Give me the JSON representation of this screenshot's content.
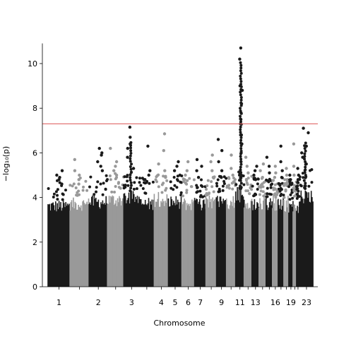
{
  "chart_data": {
    "type": "scatter",
    "subtype": "manhattan",
    "title": "",
    "xlabel": "Chromosome",
    "ylabel": "−log₁₀(p)",
    "ylim": [
      0,
      11
    ],
    "yticks": [
      0,
      2,
      4,
      6,
      8,
      10
    ],
    "significance_threshold": 7.3,
    "threshold_color": "#e06666",
    "colors": [
      "#1a1a1a",
      "#999999"
    ],
    "grid": false,
    "chromosomes": [
      {
        "chr": "1",
        "label": "1",
        "color": "#1a1a1a",
        "body_top": 3.9,
        "peaks": [
          5.2,
          5.0,
          4.8,
          4.6,
          4.9
        ]
      },
      {
        "chr": "2",
        "label": "",
        "color": "#999999",
        "body_top": 4.0,
        "peaks": [
          5.7,
          5.2,
          5.0,
          4.8,
          4.6
        ]
      },
      {
        "chr": "3",
        "label": "2",
        "color": "#1a1a1a",
        "body_top": 4.1,
        "peaks": [
          5.6,
          5.9,
          5.4,
          5.2,
          6.2,
          6.0
        ]
      },
      {
        "chr": "4",
        "label": "",
        "color": "#999999",
        "body_top": 4.2,
        "peaks": [
          6.2,
          5.6,
          5.4,
          5.2,
          5.0
        ]
      },
      {
        "chr": "5",
        "label": "3",
        "color": "#1a1a1a",
        "body_top": 4.3,
        "peaks": [
          7.15,
          6.7,
          6.4,
          6.2,
          5.8,
          5.3
        ]
      },
      {
        "chr": "6",
        "label": "",
        "color": "#1a1a1a",
        "body_top": 4.0,
        "peaks": [
          6.3,
          5.2,
          5.0,
          4.8
        ]
      },
      {
        "chr": "7",
        "label": "4",
        "color": "#999999",
        "body_top": 4.2,
        "peaks": [
          6.85,
          6.1,
          5.5,
          5.2,
          4.9
        ]
      },
      {
        "chr": "8",
        "label": "5",
        "color": "#1a1a1a",
        "body_top": 4.1,
        "peaks": [
          5.6,
          5.4,
          5.2,
          5.0
        ]
      },
      {
        "chr": "9",
        "label": "6",
        "color": "#999999",
        "body_top": 4.0,
        "peaks": [
          5.6,
          5.2,
          5.0,
          4.8
        ]
      },
      {
        "chr": "10",
        "label": "7",
        "color": "#1a1a1a",
        "body_top": 4.0,
        "peaks": [
          5.7,
          5.4,
          5.2,
          4.9
        ]
      },
      {
        "chr": "11",
        "label": "",
        "color": "#999999",
        "body_top": 4.1,
        "peaks": [
          5.9,
          5.6,
          5.2,
          4.9
        ]
      },
      {
        "chr": "12",
        "label": "9",
        "color": "#1a1a1a",
        "body_top": 4.1,
        "peaks": [
          6.6,
          6.1,
          5.6,
          5.2,
          4.9
        ]
      },
      {
        "chr": "13",
        "label": "",
        "color": "#999999",
        "body_top": 4.0,
        "peaks": [
          5.9,
          5.3,
          5.0
        ]
      },
      {
        "chr": "14",
        "label": "11",
        "color": "#1a1a1a",
        "body_top": 4.4,
        "peaks": [
          10.7,
          10.2,
          9.0,
          8.8,
          8.2,
          7.8,
          7.5,
          7.3,
          6.8,
          6.4,
          6.0,
          5.6
        ]
      },
      {
        "chr": "15",
        "label": "",
        "color": "#999999",
        "body_top": 4.1,
        "peaks": [
          5.8,
          5.4,
          5.1,
          4.8
        ]
      },
      {
        "chr": "16",
        "label": "13",
        "color": "#1a1a1a",
        "body_top": 4.0,
        "peaks": [
          5.4,
          5.2,
          5.0,
          4.8
        ]
      },
      {
        "chr": "17",
        "label": "",
        "color": "#999999",
        "body_top": 4.0,
        "peaks": [
          5.5,
          5.2,
          4.9
        ]
      },
      {
        "chr": "18",
        "label": "",
        "color": "#1a1a1a",
        "body_top": 4.0,
        "peaks": [
          5.8,
          5.4,
          5.1
        ]
      },
      {
        "chr": "19",
        "label": "16",
        "color": "#999999",
        "body_top": 4.0,
        "peaks": [
          5.4,
          5.1,
          4.9
        ]
      },
      {
        "chr": "20",
        "label": "",
        "color": "#1a1a1a",
        "body_top": 4.0,
        "peaks": [
          6.3,
          5.6,
          5.2,
          4.9
        ]
      },
      {
        "chr": "21",
        "label": "",
        "color": "#999999",
        "body_top": 3.9,
        "peaks": [
          5.3,
          5.0,
          4.8
        ]
      },
      {
        "chr": "22",
        "label": "19",
        "color": "#1a1a1a",
        "body_top": 3.9,
        "peaks": [
          5.0,
          4.8,
          4.6
        ]
      },
      {
        "chr": "23",
        "label": "",
        "color": "#999999",
        "body_top": 3.8,
        "peaks": [
          6.4,
          5.4,
          5.0
        ]
      },
      {
        "chr": "24",
        "label": "",
        "color": "#1a1a1a",
        "body_top": 3.8,
        "peaks": [
          5.3,
          5.0,
          4.8
        ]
      },
      {
        "chr": "25",
        "label": "23",
        "color": "#1a1a1a",
        "body_top": 4.4,
        "peaks": [
          7.1,
          6.9,
          6.3,
          6.0,
          5.8,
          5.5
        ]
      }
    ],
    "x_tick_labels": [
      "1",
      "2",
      "3",
      "4",
      "5",
      "6",
      "7",
      "9",
      "11",
      "13",
      "16",
      "19",
      "23"
    ]
  }
}
